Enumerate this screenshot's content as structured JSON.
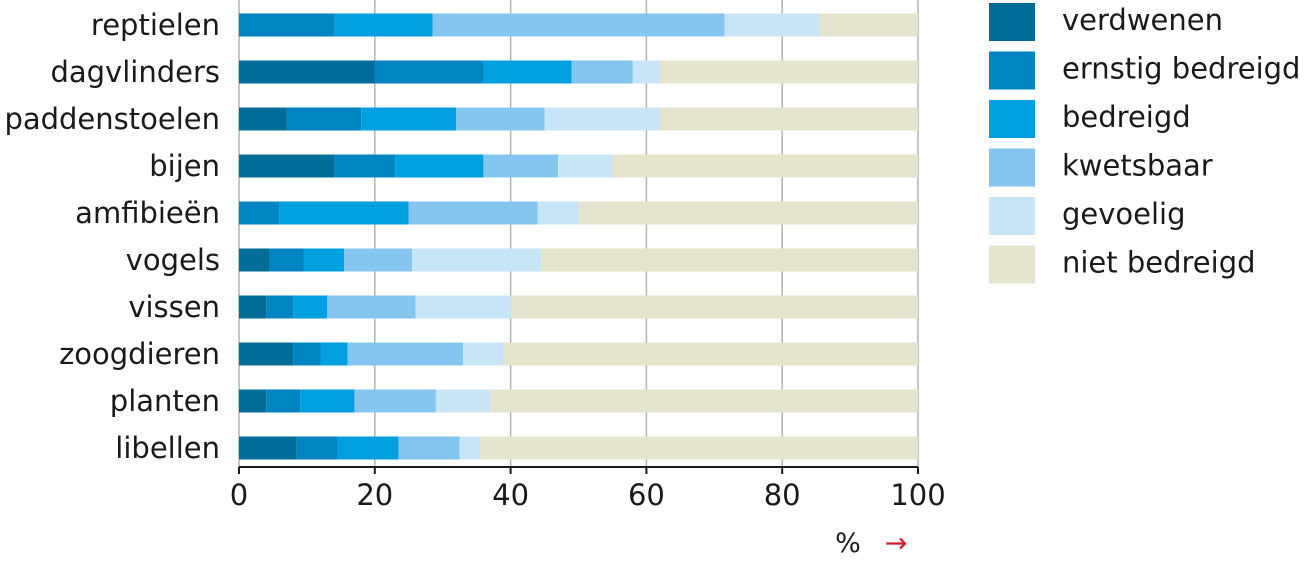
{
  "chart_data": {
    "type": "bar",
    "orientation": "horizontal",
    "stacked": true,
    "categories": [
      "reptielen",
      "dagvlinders",
      "paddenstoelen",
      "bijen",
      "amfibieën",
      "vogels",
      "vissen",
      "zoogdieren",
      "planten",
      "libellen"
    ],
    "series": [
      {
        "name": "verdwenen",
        "color": "#006d99",
        "values": [
          0,
          20,
          7,
          14,
          0,
          4.5,
          4,
          8,
          4,
          8.5
        ]
      },
      {
        "name": "ernstig bedreigd",
        "color": "#0085c0",
        "values": [
          14,
          16,
          11,
          9,
          6,
          5,
          4,
          4,
          5,
          6
        ]
      },
      {
        "name": "bedreigd",
        "color": "#009fe0",
        "values": [
          14.5,
          13,
          14,
          13,
          19,
          6,
          5,
          4,
          8,
          9
        ]
      },
      {
        "name": "kwetsbaar",
        "color": "#84c6f0",
        "values": [
          43,
          9,
          13,
          11,
          19,
          10,
          13,
          17,
          12,
          9
        ]
      },
      {
        "name": "gevoelig",
        "color": "#c8e4f7",
        "values": [
          14,
          4,
          17,
          8,
          6,
          19,
          14,
          6,
          8,
          3
        ]
      },
      {
        "name": "niet bedreigd",
        "color": "#e5e4cf",
        "values": [
          14.5,
          38,
          38,
          45,
          50,
          55.5,
          60,
          61,
          63,
          64.5
        ]
      }
    ],
    "xlim": [
      0,
      100
    ],
    "xticks": [
      0,
      20,
      40,
      60,
      80,
      100
    ],
    "xunit": "%",
    "xunit_arrow": "→",
    "grid": true,
    "legend_position": "right"
  }
}
